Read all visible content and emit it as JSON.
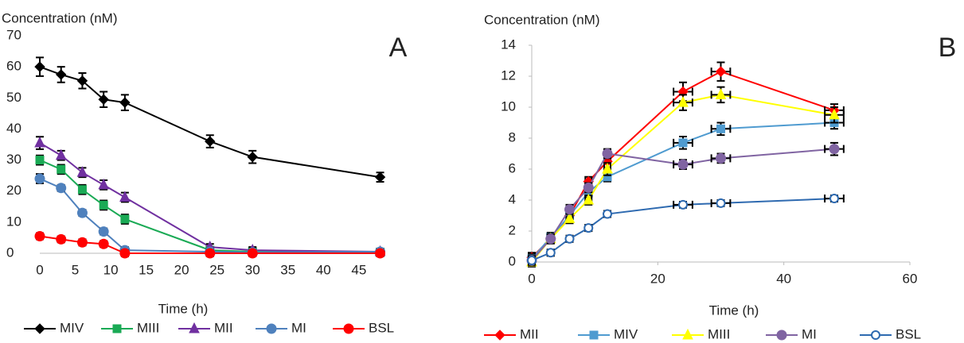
{
  "chart_data": [
    {
      "type": "line",
      "panel_label": "A",
      "y_label": "Concentration (nM)",
      "x_label": "Time (h)",
      "xlim": [
        0,
        48.5
      ],
      "xticks": [
        0,
        5,
        10,
        15,
        20,
        25,
        30,
        35,
        40,
        45
      ],
      "ylim": [
        0,
        70
      ],
      "yticks": [
        0,
        10,
        20,
        30,
        40,
        50,
        60,
        70
      ],
      "x": [
        0,
        3,
        6,
        9,
        12,
        24,
        30,
        48
      ],
      "series": [
        {
          "name": "MIV",
          "color": "#000000",
          "marker": "diamond",
          "values": [
            60,
            57.5,
            55.5,
            49.5,
            48.5,
            36,
            31,
            24.5
          ],
          "yerr": [
            3,
            2.5,
            2.5,
            2.5,
            2.5,
            2,
            2,
            1.5
          ]
        },
        {
          "name": "MIII",
          "color": "#1aaa55",
          "marker": "square",
          "values": [
            30,
            27,
            20.5,
            15.5,
            11,
            1,
            0.5,
            0.3
          ],
          "yerr": [
            1.5,
            1.5,
            1.5,
            1.5,
            1.5,
            1,
            1,
            1
          ]
        },
        {
          "name": "MII",
          "color": "#7030a0",
          "marker": "triangle",
          "values": [
            35.5,
            31.5,
            26,
            22,
            18,
            2,
            1,
            0.5
          ],
          "yerr": [
            2,
            1.5,
            1.5,
            1.5,
            1.5,
            1,
            1,
            1
          ]
        },
        {
          "name": "MI",
          "color": "#4f81bd",
          "marker": "circle",
          "values": [
            24,
            21,
            13,
            7,
            1,
            0.5,
            0.3,
            0.5
          ],
          "yerr": [
            1.5,
            1,
            1,
            1,
            1,
            1,
            1,
            1
          ]
        },
        {
          "name": "BSL",
          "color": "#ff0000",
          "marker": "circle",
          "values": [
            5.5,
            4.5,
            3.5,
            3,
            0,
            0,
            0,
            0
          ],
          "yerr": [
            1,
            1,
            1,
            1,
            1,
            1,
            1,
            1
          ]
        }
      ]
    },
    {
      "type": "line",
      "panel_label": "B",
      "y_label": "Concentration (nM)",
      "x_label": "Time (h)",
      "xlim": [
        0,
        60
      ],
      "xticks": [
        0,
        20,
        40,
        60
      ],
      "ylim": [
        0,
        14
      ],
      "yticks": [
        0,
        2,
        4,
        6,
        8,
        10,
        12,
        14
      ],
      "x": [
        0,
        3,
        6,
        9,
        12,
        24,
        30,
        48
      ],
      "series": [
        {
          "name": "MII",
          "color": "#ff0000",
          "marker": "diamond",
          "values": [
            0.3,
            1.5,
            3,
            5.2,
            6.5,
            11,
            12.3,
            9.8
          ],
          "yerr": [
            0.3,
            0.3,
            0.3,
            0.3,
            0.4,
            0.6,
            0.6,
            0.4
          ],
          "xerr": [
            0.5,
            0.5,
            0.5,
            0.5,
            0.5,
            1.5,
            1.5,
            1.5
          ]
        },
        {
          "name": "MIV",
          "color": "#4f9bd0",
          "marker": "square",
          "values": [
            0.2,
            1.6,
            3,
            4.5,
            5.5,
            7.7,
            8.6,
            9
          ],
          "yerr": [
            0.3,
            0.3,
            0.3,
            0.3,
            0.3,
            0.4,
            0.4,
            0.4
          ],
          "xerr": [
            0.5,
            0.5,
            0.5,
            0.5,
            0.5,
            1.5,
            1.5,
            1.5
          ]
        },
        {
          "name": "MIII",
          "color": "#ffff00",
          "marker": "triangle",
          "values": [
            0,
            1.5,
            2.8,
            4,
            6,
            10.3,
            10.8,
            9.5
          ],
          "yerr": [
            0.3,
            0.3,
            0.3,
            0.3,
            0.4,
            0.5,
            0.5,
            0.5
          ],
          "xerr": [
            0.5,
            0.5,
            0.5,
            0.5,
            0.5,
            1.5,
            1.5,
            1.5
          ]
        },
        {
          "name": "MI",
          "color": "#8064a2",
          "marker": "circle",
          "values": [
            0.1,
            1.5,
            3.4,
            4.8,
            7,
            6.3,
            6.7,
            7.3
          ],
          "yerr": [
            0.3,
            0.3,
            0.3,
            0.3,
            0.3,
            0.3,
            0.3,
            0.4
          ],
          "xerr": [
            0.5,
            0.5,
            0.5,
            0.5,
            0.5,
            1.5,
            1.5,
            1.5
          ]
        },
        {
          "name": "BSL",
          "color": "#2e6ab0",
          "marker": "open-circle",
          "values": [
            0.1,
            0.6,
            1.5,
            2.2,
            3.1,
            3.7,
            3.8,
            4.1
          ],
          "yerr": [
            0.2,
            0.2,
            0.2,
            0.2,
            0.2,
            0.2,
            0.2,
            0.2
          ],
          "xerr": [
            0.5,
            0.5,
            0.5,
            0.5,
            0.5,
            1.5,
            1.5,
            1.5
          ]
        }
      ]
    }
  ]
}
